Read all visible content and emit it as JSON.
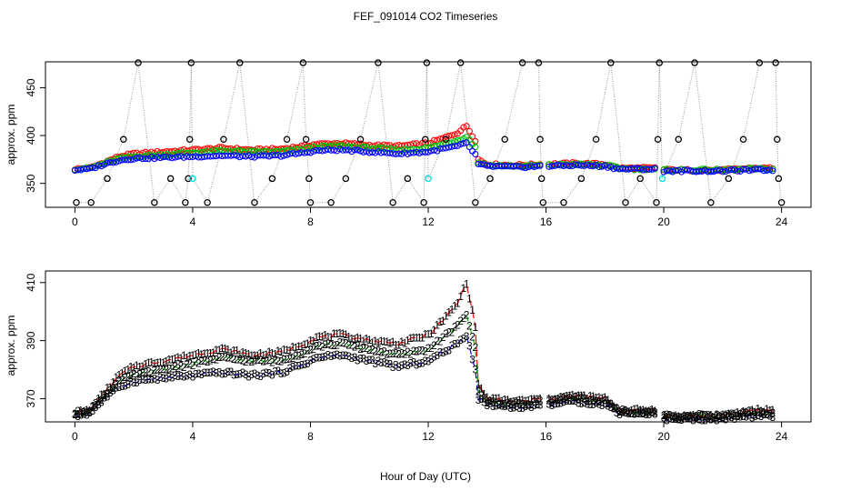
{
  "title": "FEF_091014  CO2 Timeseries",
  "xlabel": "Hour of Day (UTC)",
  "colors": {
    "series1": "#ff0000",
    "series2": "#00bb00",
    "series3": "#0000ff",
    "calibration": "#000000",
    "calibration_alt": "#00dddd",
    "connector": "#999999"
  },
  "chart_data": [
    {
      "type": "scatter",
      "panel": "top",
      "ylabel": "approx. ppm",
      "xlim": [
        -1.0,
        25.0
      ],
      "ylim": [
        325,
        477
      ],
      "xticks": [
        0,
        4,
        8,
        12,
        16,
        20,
        24
      ],
      "yticks": [
        350,
        400,
        450
      ],
      "grid": false,
      "marker": "circle",
      "series": [
        {
          "name": "1",
          "color": "#ff0000",
          "knots": [
            [
              0.0,
              365
            ],
            [
              0.5,
              366
            ],
            [
              1.0,
              372
            ],
            [
              1.5,
              378
            ],
            [
              2.0,
              381
            ],
            [
              3.0,
              383
            ],
            [
              4.0,
              385
            ],
            [
              5.0,
              387
            ],
            [
              6.0,
              385
            ],
            [
              7.0,
              386
            ],
            [
              7.8,
              389
            ],
            [
              8.2,
              391
            ],
            [
              9.0,
              392
            ],
            [
              10.0,
              390
            ],
            [
              11.0,
              389
            ],
            [
              12.0,
              392
            ],
            [
              12.5,
              397
            ],
            [
              13.0,
              403
            ],
            [
              13.3,
              410
            ],
            [
              13.6,
              395
            ],
            [
              13.7,
              375
            ],
            [
              14.0,
              370
            ],
            [
              15.0,
              369
            ],
            [
              16.0,
              370
            ],
            [
              17.0,
              371
            ],
            [
              18.0,
              370
            ],
            [
              18.5,
              366
            ],
            [
              19.0,
              366
            ],
            [
              19.8,
              366
            ],
            [
              20.0,
              364
            ],
            [
              21.0,
              364
            ],
            [
              22.0,
              364
            ],
            [
              23.0,
              366
            ],
            [
              23.8,
              366
            ]
          ]
        },
        {
          "name": "2",
          "color": "#00bb00",
          "knots": [
            [
              0.0,
              365
            ],
            [
              0.5,
              366
            ],
            [
              1.0,
              371
            ],
            [
              1.5,
              376
            ],
            [
              2.0,
              378
            ],
            [
              3.0,
              380
            ],
            [
              4.0,
              382
            ],
            [
              5.0,
              384
            ],
            [
              6.0,
              383
            ],
            [
              7.0,
              383
            ],
            [
              7.8,
              386
            ],
            [
              8.2,
              388
            ],
            [
              9.0,
              389
            ],
            [
              10.0,
              387
            ],
            [
              11.0,
              385
            ],
            [
              12.0,
              387
            ],
            [
              12.5,
              391
            ],
            [
              13.0,
              395
            ],
            [
              13.3,
              399
            ],
            [
              13.6,
              388
            ],
            [
              13.7,
              372
            ],
            [
              14.0,
              369
            ],
            [
              15.0,
              368
            ],
            [
              16.0,
              369
            ],
            [
              17.0,
              370
            ],
            [
              18.0,
              369
            ],
            [
              18.5,
              366
            ],
            [
              19.0,
              365
            ],
            [
              19.8,
              365
            ],
            [
              20.0,
              364
            ],
            [
              21.0,
              364
            ],
            [
              22.0,
              364
            ],
            [
              23.0,
              365
            ],
            [
              23.8,
              365
            ]
          ]
        },
        {
          "name": "3",
          "color": "#0000ff",
          "knots": [
            [
              0.0,
              364
            ],
            [
              0.5,
              365
            ],
            [
              1.0,
              370
            ],
            [
              1.5,
              374
            ],
            [
              2.0,
              376
            ],
            [
              3.0,
              377
            ],
            [
              4.0,
              378
            ],
            [
              5.0,
              379
            ],
            [
              6.0,
              378
            ],
            [
              7.0,
              379
            ],
            [
              7.8,
              382
            ],
            [
              8.2,
              384
            ],
            [
              9.0,
              385
            ],
            [
              10.0,
              383
            ],
            [
              11.0,
              381
            ],
            [
              12.0,
              383
            ],
            [
              12.5,
              386
            ],
            [
              13.0,
              389
            ],
            [
              13.3,
              392
            ],
            [
              13.6,
              380
            ],
            [
              13.7,
              370
            ],
            [
              14.0,
              368
            ],
            [
              15.0,
              367
            ],
            [
              16.0,
              368
            ],
            [
              17.0,
              369
            ],
            [
              18.0,
              368
            ],
            [
              18.5,
              365
            ],
            [
              19.0,
              365
            ],
            [
              19.8,
              365
            ],
            [
              20.0,
              363
            ],
            [
              21.0,
              363
            ],
            [
              22.0,
              363
            ],
            [
              23.0,
              364
            ],
            [
              23.8,
              364
            ]
          ]
        }
      ],
      "calibration_points": [
        {
          "x": 0.05,
          "y": 330
        },
        {
          "x": 0.55,
          "y": 330
        },
        {
          "x": 1.1,
          "y": 355
        },
        {
          "x": 1.65,
          "y": 396
        },
        {
          "x": 2.15,
          "y": 476
        },
        {
          "x": 2.7,
          "y": 330
        },
        {
          "x": 3.25,
          "y": 355
        },
        {
          "x": 3.75,
          "y": 330
        },
        {
          "x": 3.85,
          "y": 355
        },
        {
          "x": 3.9,
          "y": 396
        },
        {
          "x": 3.95,
          "y": 476
        },
        {
          "x": 4.0,
          "y": 355,
          "color": "#00dddd"
        },
        {
          "x": 4.5,
          "y": 330
        },
        {
          "x": 5.05,
          "y": 396
        },
        {
          "x": 5.6,
          "y": 476
        },
        {
          "x": 6.1,
          "y": 330
        },
        {
          "x": 6.7,
          "y": 355
        },
        {
          "x": 7.2,
          "y": 396
        },
        {
          "x": 7.75,
          "y": 476
        },
        {
          "x": 7.85,
          "y": 396
        },
        {
          "x": 7.95,
          "y": 355
        },
        {
          "x": 8.0,
          "y": 330
        },
        {
          "x": 8.7,
          "y": 330
        },
        {
          "x": 9.2,
          "y": 355
        },
        {
          "x": 9.7,
          "y": 396
        },
        {
          "x": 10.3,
          "y": 476
        },
        {
          "x": 10.8,
          "y": 330
        },
        {
          "x": 11.3,
          "y": 355
        },
        {
          "x": 11.85,
          "y": 330
        },
        {
          "x": 11.9,
          "y": 396
        },
        {
          "x": 11.95,
          "y": 476
        },
        {
          "x": 12.0,
          "y": 355,
          "color": "#00dddd"
        },
        {
          "x": 12.6,
          "y": 396
        },
        {
          "x": 13.1,
          "y": 476
        },
        {
          "x": 13.6,
          "y": 330
        },
        {
          "x": 14.1,
          "y": 355
        },
        {
          "x": 14.6,
          "y": 396
        },
        {
          "x": 15.2,
          "y": 476
        },
        {
          "x": 15.75,
          "y": 476
        },
        {
          "x": 15.8,
          "y": 396
        },
        {
          "x": 15.85,
          "y": 355
        },
        {
          "x": 15.9,
          "y": 330
        },
        {
          "x": 16.6,
          "y": 330
        },
        {
          "x": 17.2,
          "y": 355
        },
        {
          "x": 17.7,
          "y": 396
        },
        {
          "x": 18.2,
          "y": 476
        },
        {
          "x": 18.7,
          "y": 330
        },
        {
          "x": 19.2,
          "y": 355
        },
        {
          "x": 19.75,
          "y": 330
        },
        {
          "x": 19.8,
          "y": 396
        },
        {
          "x": 19.85,
          "y": 476
        },
        {
          "x": 19.95,
          "y": 355,
          "color": "#00dddd"
        },
        {
          "x": 20.5,
          "y": 396
        },
        {
          "x": 21.05,
          "y": 476
        },
        {
          "x": 21.6,
          "y": 330
        },
        {
          "x": 22.2,
          "y": 355
        },
        {
          "x": 22.7,
          "y": 396
        },
        {
          "x": 23.25,
          "y": 476
        },
        {
          "x": 23.8,
          "y": 476
        },
        {
          "x": 23.85,
          "y": 396
        },
        {
          "x": 23.9,
          "y": 355
        },
        {
          "x": 24.0,
          "y": 330
        }
      ]
    },
    {
      "type": "line",
      "panel": "bottom",
      "ylabel": "approx. ppm",
      "xlim": [
        -1.0,
        25.0
      ],
      "ylim": [
        362,
        414
      ],
      "xticks": [
        0,
        4,
        8,
        12,
        16,
        20,
        24
      ],
      "yticks": [
        370,
        390,
        410
      ],
      "grid": false,
      "marker_labels": [
        "1",
        "2",
        "3"
      ],
      "gaps": [
        [
          15.8,
          16.0
        ],
        [
          19.8,
          20.0
        ],
        [
          23.8,
          25.0
        ]
      ],
      "series": [
        {
          "name": "1",
          "color": "#ff0000",
          "line_style": "long-dash"
        },
        {
          "name": "2",
          "color": "#00bb00",
          "line_style": "dash-dot"
        },
        {
          "name": "3",
          "color": "#0000ff",
          "line_style": "dash-dot"
        }
      ]
    }
  ]
}
